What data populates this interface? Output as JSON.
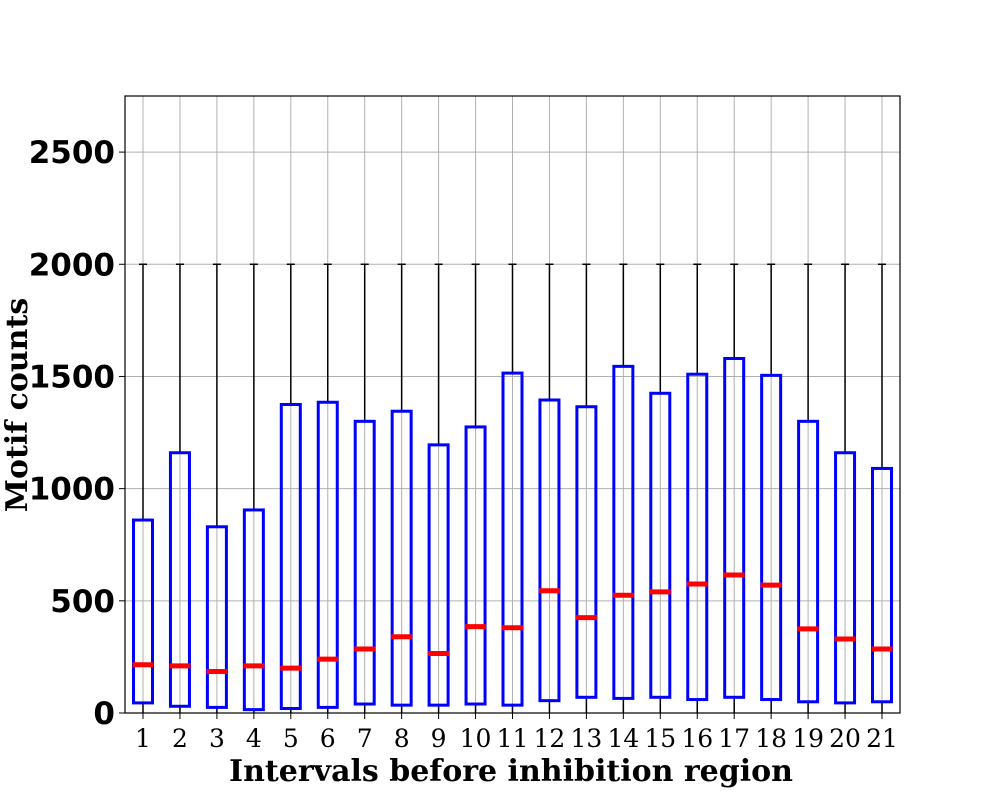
{
  "chart_data": {
    "type": "boxplot",
    "title": "",
    "xlabel": "Intervals before inhibition region",
    "ylabel": "Motif counts",
    "ylim": [
      0,
      2750
    ],
    "yticks": [
      0,
      500,
      1000,
      1500,
      2000,
      2500
    ],
    "grid": true,
    "categories": [
      "1",
      "2",
      "3",
      "4",
      "5",
      "6",
      "7",
      "8",
      "9",
      "10",
      "11",
      "12",
      "13",
      "14",
      "15",
      "16",
      "17",
      "18",
      "19",
      "20",
      "21"
    ],
    "boxes": [
      {
        "min": 0,
        "q1": 45,
        "median": 215,
        "q3": 860,
        "max": 2000
      },
      {
        "min": 0,
        "q1": 30,
        "median": 210,
        "q3": 1160,
        "max": 2000
      },
      {
        "min": 0,
        "q1": 25,
        "median": 185,
        "q3": 830,
        "max": 2000
      },
      {
        "min": 0,
        "q1": 15,
        "median": 210,
        "q3": 905,
        "max": 2000
      },
      {
        "min": 0,
        "q1": 20,
        "median": 200,
        "q3": 1375,
        "max": 2000
      },
      {
        "min": 0,
        "q1": 25,
        "median": 240,
        "q3": 1385,
        "max": 2000
      },
      {
        "min": 0,
        "q1": 40,
        "median": 285,
        "q3": 1300,
        "max": 2000
      },
      {
        "min": 0,
        "q1": 35,
        "median": 340,
        "q3": 1345,
        "max": 2000
      },
      {
        "min": 0,
        "q1": 35,
        "median": 265,
        "q3": 1195,
        "max": 2000
      },
      {
        "min": 0,
        "q1": 40,
        "median": 385,
        "q3": 1275,
        "max": 2000
      },
      {
        "min": 0,
        "q1": 35,
        "median": 380,
        "q3": 1515,
        "max": 2000
      },
      {
        "min": 0,
        "q1": 55,
        "median": 545,
        "q3": 1395,
        "max": 2000
      },
      {
        "min": 0,
        "q1": 70,
        "median": 425,
        "q3": 1365,
        "max": 2000
      },
      {
        "min": 0,
        "q1": 65,
        "median": 525,
        "q3": 1545,
        "max": 2000
      },
      {
        "min": 0,
        "q1": 70,
        "median": 540,
        "q3": 1425,
        "max": 2000
      },
      {
        "min": 0,
        "q1": 60,
        "median": 575,
        "q3": 1510,
        "max": 2000
      },
      {
        "min": 0,
        "q1": 70,
        "median": 615,
        "q3": 1580,
        "max": 2000
      },
      {
        "min": 0,
        "q1": 60,
        "median": 570,
        "q3": 1505,
        "max": 2000
      },
      {
        "min": 0,
        "q1": 50,
        "median": 375,
        "q3": 1300,
        "max": 2000
      },
      {
        "min": 0,
        "q1": 45,
        "median": 330,
        "q3": 1160,
        "max": 2000
      },
      {
        "min": 0,
        "q1": 50,
        "median": 285,
        "q3": 1090,
        "max": 2000
      }
    ],
    "colors": {
      "box": "#0000ff",
      "median": "#ff0000",
      "whisker": "#000000",
      "grid": "#b0b0b0"
    }
  }
}
